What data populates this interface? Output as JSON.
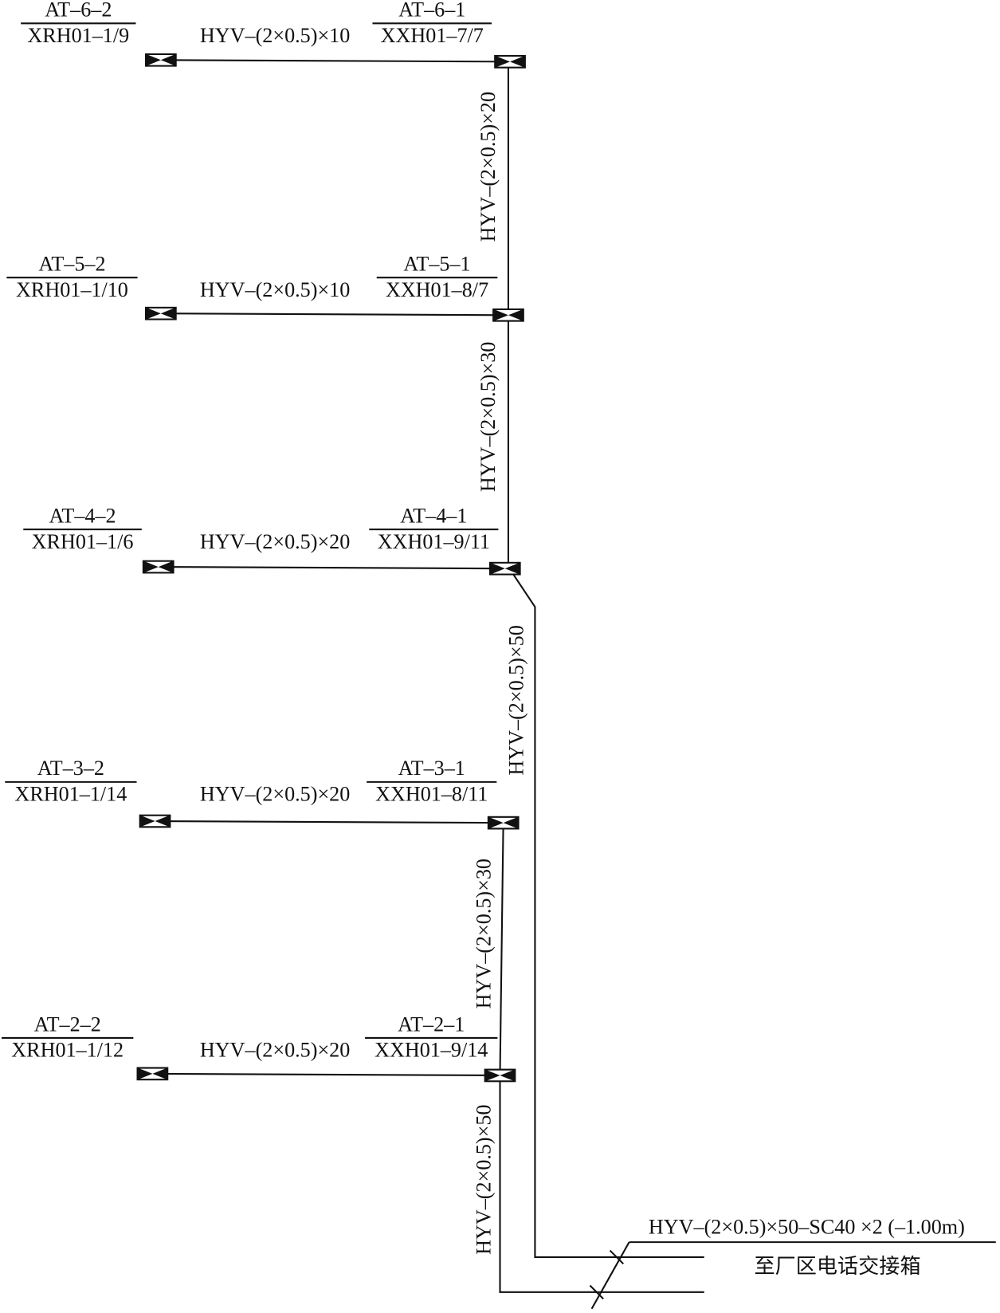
{
  "rows": [
    {
      "left": {
        "top": "AT–6–2",
        "bottom": "XRH01–1/9"
      },
      "right": {
        "top": "AT–6–1",
        "bottom": "XXH01–7/7"
      },
      "cable": "HYV–(2×0.5)×10"
    },
    {
      "left": {
        "top": "AT–5–2",
        "bottom": "XRH01–1/10"
      },
      "right": {
        "top": "AT–5–1",
        "bottom": "XXH01–8/7"
      },
      "cable": "HYV–(2×0.5)×10"
    },
    {
      "left": {
        "top": "AT–4–2",
        "bottom": "XRH01–1/6"
      },
      "right": {
        "top": "AT–4–1",
        "bottom": "XXH01–9/11"
      },
      "cable": "HYV–(2×0.5)×20"
    },
    {
      "left": {
        "top": "AT–3–2",
        "bottom": "XRH01–1/14"
      },
      "right": {
        "top": "AT–3–1",
        "bottom": "XXH01–8/11"
      },
      "cable": "HYV–(2×0.5)×20"
    },
    {
      "left": {
        "top": "AT–2–2",
        "bottom": "XRH01–1/12"
      },
      "right": {
        "top": "AT–2–1",
        "bottom": "XXH01–9/14"
      },
      "cable": "HYV–(2×0.5)×20"
    }
  ],
  "risers": [
    "HYV–(2×0.5)×20",
    "HYV–(2×0.5)×30",
    "HYV–(2×0.5)×50",
    "HYV–(2×0.5)×30",
    "HYV–(2×0.5)×50"
  ],
  "outgoing": {
    "cable": "HYV–(2×0.5)×50–SC40 ×2 (–1.00m)",
    "destination": "至厂区电话交接箱"
  }
}
